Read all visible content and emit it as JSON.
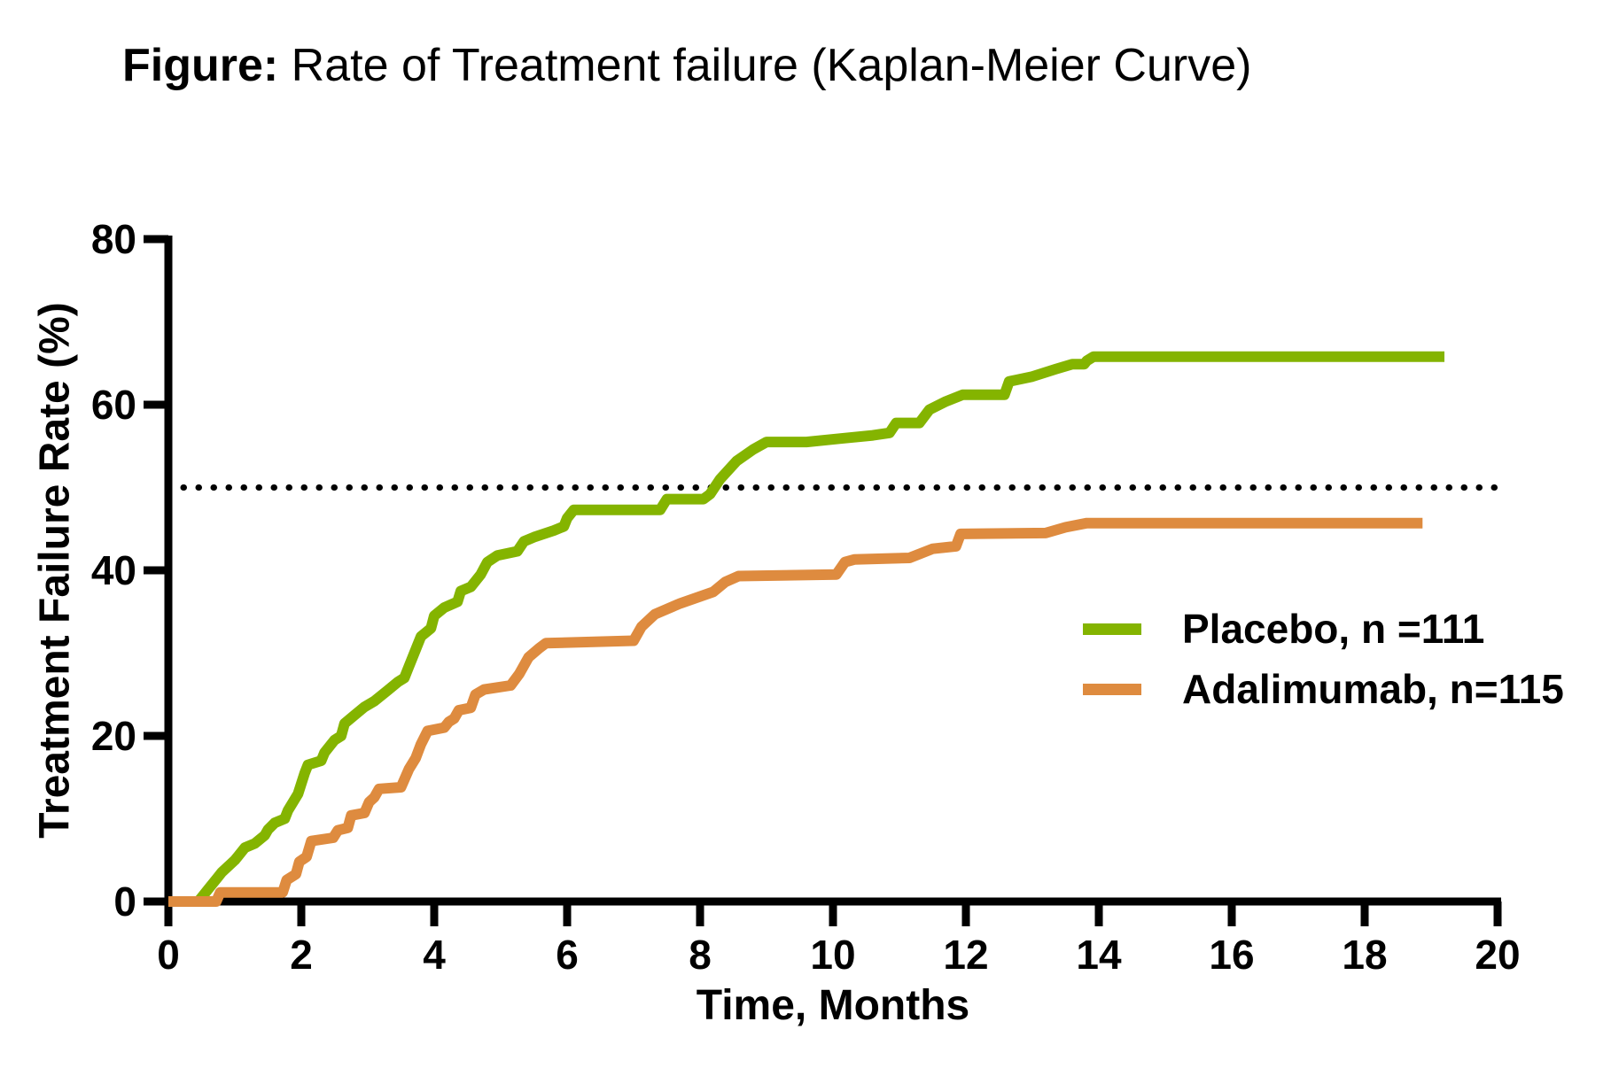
{
  "title": {
    "prefix": "Figure:",
    "text": " Rate of Treatment failure (Kaplan-Meier Curve)"
  },
  "axes": {
    "x_label": "Time, Months",
    "y_label": "Treatment Failure Rate (%)"
  },
  "legend": {
    "items": [
      {
        "label": "Placebo, n =111"
      },
      {
        "label": "Adalimumab, n=115"
      }
    ]
  },
  "colors": {
    "placebo": "#84B400",
    "adalimumab": "#DE8B3F",
    "axis": "#000000",
    "threshold": "#000000",
    "background": "#FFFFFF"
  },
  "chart_data": {
    "type": "line",
    "subtype": "kaplan-meier-step-curves",
    "title": "Rate of Treatment failure (Kaplan-Meier Curve)",
    "xlabel": "Time, Months",
    "ylabel": "Treatment Failure Rate (%)",
    "xlim": [
      0,
      20
    ],
    "ylim": [
      0,
      80
    ],
    "x_ticks": [
      0,
      2,
      4,
      6,
      8,
      10,
      12,
      14,
      16,
      18,
      20
    ],
    "y_ticks": [
      0,
      20,
      40,
      60,
      80
    ],
    "grid": false,
    "legend_position": "right-middle",
    "threshold_line": {
      "y": 50,
      "style": "dotted"
    },
    "series": [
      {
        "name": "Placebo, n =111",
        "n": 111,
        "color": "#84B400",
        "final_value": 65.8,
        "end_time": 19.2,
        "points": [
          [
            0,
            0
          ],
          [
            0.45,
            0
          ],
          [
            0.6,
            1.5
          ],
          [
            0.75,
            3
          ],
          [
            0.8,
            3.5
          ],
          [
            1.0,
            5
          ],
          [
            1.05,
            5.5
          ],
          [
            1.15,
            6.5
          ],
          [
            1.3,
            7
          ],
          [
            1.45,
            8
          ],
          [
            1.5,
            8.7
          ],
          [
            1.6,
            9.5
          ],
          [
            1.75,
            10
          ],
          [
            1.8,
            11
          ],
          [
            1.95,
            13
          ],
          [
            2.05,
            15.5
          ],
          [
            2.1,
            16.5
          ],
          [
            2.3,
            17
          ],
          [
            2.35,
            18
          ],
          [
            2.5,
            19.5
          ],
          [
            2.6,
            20
          ],
          [
            2.65,
            21.5
          ],
          [
            2.8,
            22.5
          ],
          [
            2.95,
            23.5
          ],
          [
            3.1,
            24.2
          ],
          [
            3.3,
            25.5
          ],
          [
            3.45,
            26.5
          ],
          [
            3.55,
            27
          ],
          [
            3.6,
            28
          ],
          [
            3.7,
            30
          ],
          [
            3.8,
            32
          ],
          [
            3.95,
            33
          ],
          [
            4.0,
            34.5
          ],
          [
            4.15,
            35.5
          ],
          [
            4.35,
            36.2
          ],
          [
            4.4,
            37.5
          ],
          [
            4.55,
            38
          ],
          [
            4.7,
            39.5
          ],
          [
            4.8,
            41
          ],
          [
            4.95,
            41.8
          ],
          [
            5.25,
            42.3
          ],
          [
            5.35,
            43.5
          ],
          [
            5.5,
            44
          ],
          [
            5.8,
            44.8
          ],
          [
            5.95,
            45.3
          ],
          [
            6.0,
            46.3
          ],
          [
            6.1,
            47.3
          ],
          [
            7.4,
            47.3
          ],
          [
            7.5,
            48.6
          ],
          [
            8.05,
            48.6
          ],
          [
            8.15,
            49.2
          ],
          [
            8.3,
            51
          ],
          [
            8.55,
            53.2
          ],
          [
            8.8,
            54.6
          ],
          [
            9.0,
            55.5
          ],
          [
            9.6,
            55.5
          ],
          [
            10.1,
            55.9
          ],
          [
            10.6,
            56.3
          ],
          [
            10.85,
            56.6
          ],
          [
            10.95,
            57.8
          ],
          [
            11.3,
            57.8
          ],
          [
            11.45,
            59.4
          ],
          [
            11.7,
            60.4
          ],
          [
            11.95,
            61.2
          ],
          [
            12.58,
            61.2
          ],
          [
            12.65,
            62.8
          ],
          [
            13.0,
            63.4
          ],
          [
            13.35,
            64.3
          ],
          [
            13.6,
            64.9
          ],
          [
            13.78,
            64.9
          ],
          [
            13.82,
            65.3
          ],
          [
            13.92,
            65.8
          ],
          [
            19.2,
            65.8
          ]
        ]
      },
      {
        "name": "Adalimumab, n=115",
        "n": 115,
        "color": "#DE8B3F",
        "final_value": 45.7,
        "end_time": 18.9,
        "points": [
          [
            0,
            0
          ],
          [
            0.72,
            0
          ],
          [
            0.78,
            1.1
          ],
          [
            1.72,
            1.1
          ],
          [
            1.78,
            2.6
          ],
          [
            1.92,
            3.3
          ],
          [
            1.97,
            4.8
          ],
          [
            2.08,
            5.4
          ],
          [
            2.15,
            7.3
          ],
          [
            2.48,
            7.7
          ],
          [
            2.55,
            8.6
          ],
          [
            2.7,
            8.9
          ],
          [
            2.75,
            10.4
          ],
          [
            2.95,
            10.7
          ],
          [
            3.02,
            12
          ],
          [
            3.1,
            12.6
          ],
          [
            3.17,
            13.6
          ],
          [
            3.5,
            13.8
          ],
          [
            3.62,
            16
          ],
          [
            3.72,
            17.3
          ],
          [
            3.8,
            19
          ],
          [
            3.9,
            20.6
          ],
          [
            4.15,
            21
          ],
          [
            4.22,
            21.7
          ],
          [
            4.3,
            22.1
          ],
          [
            4.37,
            23.1
          ],
          [
            4.55,
            23.4
          ],
          [
            4.62,
            25
          ],
          [
            4.75,
            25.6
          ],
          [
            5.15,
            26.1
          ],
          [
            5.28,
            27.5
          ],
          [
            5.42,
            29.5
          ],
          [
            5.58,
            30.6
          ],
          [
            5.68,
            31.2
          ],
          [
            7.0,
            31.5
          ],
          [
            7.12,
            33.2
          ],
          [
            7.32,
            34.7
          ],
          [
            7.7,
            36
          ],
          [
            8.2,
            37.4
          ],
          [
            8.38,
            38.6
          ],
          [
            8.58,
            39.3
          ],
          [
            10.05,
            39.5
          ],
          [
            10.18,
            41
          ],
          [
            10.32,
            41.3
          ],
          [
            11.15,
            41.5
          ],
          [
            11.5,
            42.6
          ],
          [
            11.85,
            42.9
          ],
          [
            11.92,
            44.4
          ],
          [
            13.2,
            44.5
          ],
          [
            13.5,
            45.2
          ],
          [
            13.82,
            45.7
          ],
          [
            18.87,
            45.7
          ]
        ]
      }
    ]
  }
}
